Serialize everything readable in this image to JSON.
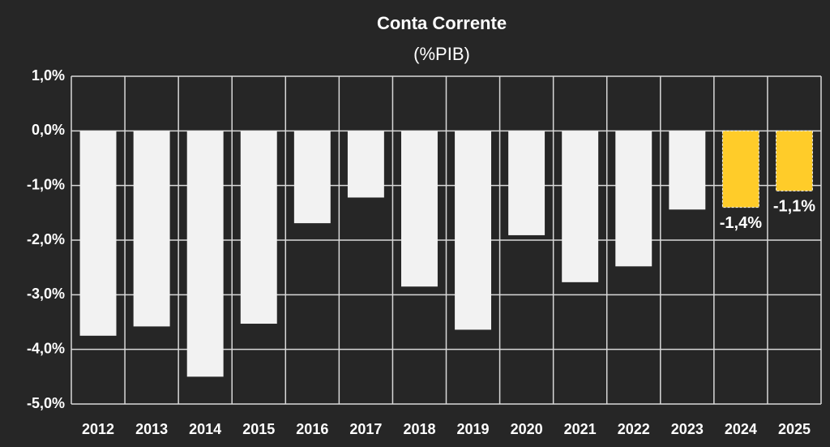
{
  "chart_data": {
    "type": "bar",
    "title": "Conta Corrente",
    "subtitle": "(%PIB)",
    "categories": [
      "2012",
      "2013",
      "2014",
      "2015",
      "2016",
      "2017",
      "2018",
      "2019",
      "2020",
      "2021",
      "2022",
      "2023",
      "2024",
      "2025"
    ],
    "values": [
      -3.75,
      -3.58,
      -4.5,
      -3.53,
      -1.69,
      -1.22,
      -2.85,
      -3.64,
      -1.91,
      -2.77,
      -2.48,
      -1.44,
      -1.4,
      -1.1
    ],
    "value_labels": [
      null,
      null,
      null,
      null,
      null,
      null,
      null,
      null,
      null,
      null,
      null,
      null,
      "-1,4%",
      "-1,1%"
    ],
    "colors": [
      "#f2f2f2",
      "#f2f2f2",
      "#f2f2f2",
      "#f2f2f2",
      "#f2f2f2",
      "#f2f2f2",
      "#f2f2f2",
      "#f2f2f2",
      "#f2f2f2",
      "#f2f2f2",
      "#f2f2f2",
      "#f2f2f2",
      "#ffcc29",
      "#ffcc29"
    ],
    "ylim": [
      -5,
      1
    ],
    "yticks": [
      {
        "value": 1,
        "label": "1,0%"
      },
      {
        "value": 0,
        "label": "0,0%"
      },
      {
        "value": -1,
        "label": "-1,0%"
      },
      {
        "value": -2,
        "label": "-2,0%"
      },
      {
        "value": -3,
        "label": "-3,0%"
      },
      {
        "value": -4,
        "label": "-4,0%"
      },
      {
        "value": -5,
        "label": "-5,0%"
      }
    ],
    "grid": true
  }
}
